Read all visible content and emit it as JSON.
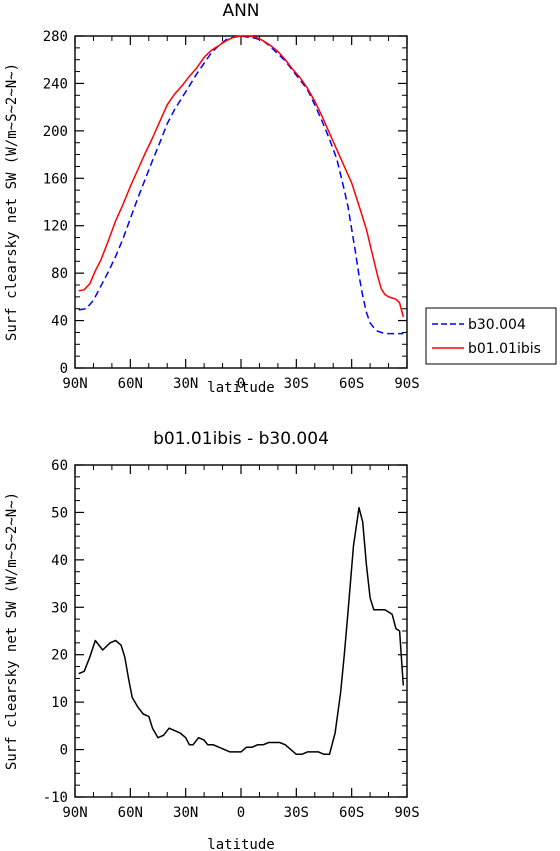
{
  "chart_data": [
    {
      "type": "line",
      "title": "ANN",
      "xlabel": "latitude",
      "ylabel": "Surf clearsky net SW (W/m~S~2~N~)",
      "x_ticks": [
        "90N",
        "60N",
        "30N",
        "0",
        "30S",
        "60S",
        "90S"
      ],
      "xlim": [
        -90,
        90
      ],
      "ylim": [
        0,
        280
      ],
      "y_ticks": [
        0,
        40,
        80,
        120,
        160,
        200,
        240,
        280
      ],
      "legend_position": "right",
      "series": [
        {
          "name": "b30.004",
          "style": "dashed",
          "color": "#0000ff",
          "x": [
            -88,
            -84,
            -80,
            -76,
            -72,
            -68,
            -64,
            -60,
            -56,
            -52,
            -48,
            -44,
            -40,
            -36,
            -32,
            -28,
            -24,
            -20,
            -16,
            -12,
            -8,
            -4,
            0,
            4,
            8,
            12,
            16,
            20,
            24,
            28,
            32,
            36,
            40,
            44,
            48,
            52,
            56,
            58,
            60,
            62,
            64,
            66,
            68,
            70,
            72,
            74,
            76,
            78,
            80,
            82,
            84,
            86,
            88
          ],
          "y": [
            49,
            50,
            57,
            69,
            81,
            94,
            109,
            126,
            143,
            159,
            175,
            190,
            206,
            218,
            228,
            238,
            248,
            257,
            266,
            272,
            277,
            279,
            280,
            279,
            278,
            276,
            271,
            265,
            259,
            251,
            243,
            235,
            222,
            208,
            193,
            176,
            150,
            136,
            117,
            98,
            78,
            61,
            47,
            38,
            34,
            31,
            30,
            29,
            29,
            29,
            29,
            29,
            29
          ]
        },
        {
          "name": "b01.01ibis",
          "style": "solid",
          "color": "#ff0000",
          "x": [
            -88,
            -85,
            -82,
            -79,
            -76,
            -72,
            -68,
            -64,
            -60,
            -56,
            -52,
            -48,
            -44,
            -40,
            -36,
            -32,
            -28,
            -24,
            -20,
            -16,
            -12,
            -8,
            -4,
            0,
            4,
            8,
            12,
            16,
            20,
            24,
            28,
            32,
            36,
            40,
            44,
            48,
            52,
            56,
            60,
            64,
            68,
            70,
            72,
            74,
            76,
            78,
            80,
            82,
            84,
            86,
            88
          ],
          "y": [
            65,
            66,
            71,
            82,
            91,
            107,
            124,
            138,
            153,
            167,
            181,
            194,
            208,
            222,
            231,
            238,
            246,
            253,
            262,
            268,
            272,
            276,
            279,
            280,
            280,
            279,
            276,
            272,
            267,
            260,
            252,
            245,
            236,
            225,
            212,
            198,
            184,
            170,
            156,
            137,
            117,
            104,
            91,
            78,
            67,
            62,
            60,
            59,
            58,
            55,
            43
          ]
        }
      ]
    },
    {
      "type": "line",
      "title": "b01.01ibis - b30.004",
      "xlabel": "latitude",
      "ylabel": "Surf clearsky net SW (W/m~S~2~N~)",
      "x_ticks": [
        "90N",
        "60N",
        "30N",
        "0",
        "30S",
        "60S",
        "90S"
      ],
      "xlim": [
        -90,
        90
      ],
      "ylim": [
        -10,
        60
      ],
      "y_ticks": [
        -10,
        0,
        10,
        20,
        30,
        40,
        50,
        60
      ],
      "series": [
        {
          "style": "solid",
          "color": "#000000",
          "x": [
            -88,
            -85,
            -82,
            -79,
            -75,
            -71,
            -68,
            -65,
            -63,
            -61,
            -59,
            -56,
            -53,
            -50,
            -48,
            -45,
            -42,
            -39,
            -36,
            -33,
            -30,
            -28,
            -26,
            -23,
            -20,
            -18,
            -15,
            -12,
            -9,
            -6,
            -3,
            0,
            3,
            6,
            9,
            12,
            15,
            18,
            21,
            24,
            27,
            30,
            33,
            36,
            39,
            42,
            45,
            48,
            51,
            54,
            56,
            58,
            61,
            64,
            66,
            68,
            70,
            72,
            74,
            76,
            78,
            80,
            82,
            84,
            86,
            88
          ],
          "y": [
            16,
            16.5,
            19.5,
            23,
            21,
            22.5,
            23,
            22,
            19.5,
            15,
            11,
            9,
            7.5,
            7,
            4.5,
            2.5,
            3,
            4.5,
            4,
            3.5,
            2.5,
            1,
            1,
            2.5,
            2,
            1,
            1,
            0.5,
            0,
            -0.5,
            -0.5,
            -0.5,
            0.5,
            0.5,
            1,
            1,
            1.5,
            1.5,
            1.5,
            1,
            0,
            -1,
            -1,
            -0.5,
            -0.5,
            -0.5,
            -1,
            -1,
            3.5,
            12,
            20,
            29,
            43,
            51,
            48,
            39,
            32,
            29.5,
            29.5,
            29.5,
            29.5,
            29,
            28.5,
            25.5,
            25,
            13.5
          ]
        }
      ]
    }
  ]
}
